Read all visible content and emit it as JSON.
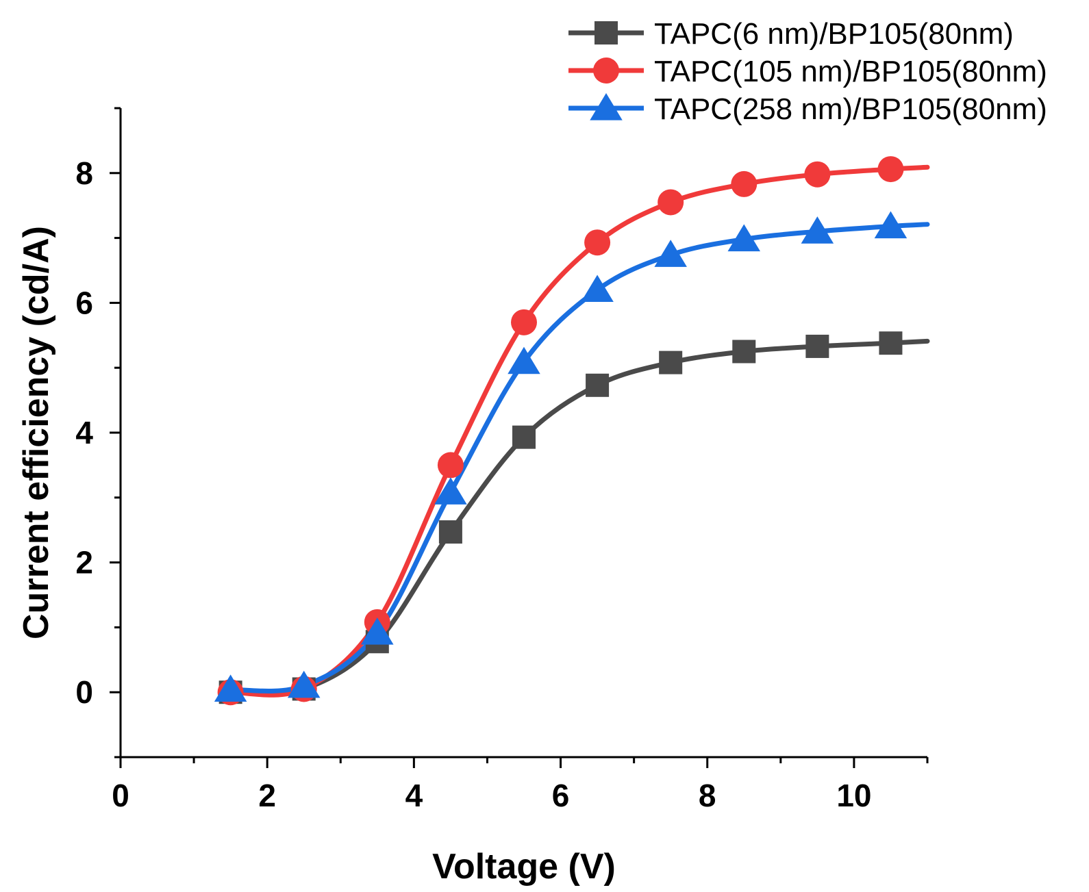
{
  "chart_data": {
    "type": "line",
    "title": "",
    "xlabel": "Voltage (V)",
    "ylabel": "Current efficiency (cd/A)",
    "xlim": [
      0,
      11
    ],
    "ylim": [
      -1,
      9
    ],
    "xticks": [
      0,
      2,
      4,
      6,
      8,
      10
    ],
    "yticks": [
      0,
      2,
      4,
      6,
      8
    ],
    "x_tick_labels": [
      "0",
      "2",
      "4",
      "6",
      "8",
      "10"
    ],
    "y_tick_labels": [
      "0",
      "2",
      "4",
      "6",
      "8"
    ],
    "grid": false,
    "legend_position": "top-right",
    "series": [
      {
        "name": "TAPC(6 nm)/BP105(80nm)",
        "color": "#4a4a4a",
        "marker": "square",
        "x": [
          1.5,
          2.5,
          3.5,
          4.5,
          5.5,
          6.5,
          7.5,
          8.5,
          9.5,
          10.5
        ],
        "values": [
          0.0,
          0.05,
          0.78,
          2.47,
          3.93,
          4.73,
          5.08,
          5.25,
          5.33,
          5.38
        ],
        "curve_end": 5.41
      },
      {
        "name": "TAPC(105 nm)/BP105(80nm)",
        "color": "#f03a3a",
        "marker": "circle",
        "x": [
          1.5,
          2.5,
          3.5,
          4.5,
          5.5,
          6.5,
          7.5,
          8.5,
          9.5,
          10.5
        ],
        "values": [
          0.0,
          0.05,
          1.08,
          3.5,
          5.7,
          6.93,
          7.55,
          7.83,
          7.98,
          8.06
        ],
        "curve_end": 8.09
      },
      {
        "name": "TAPC(258 nm)/BP105(80nm)",
        "color": "#1a6fe0",
        "marker": "triangle",
        "x": [
          1.5,
          2.5,
          3.5,
          4.5,
          5.5,
          6.5,
          7.5,
          8.5,
          9.5,
          10.5
        ],
        "values": [
          0.04,
          0.1,
          0.92,
          3.08,
          5.09,
          6.2,
          6.74,
          6.98,
          7.1,
          7.18
        ],
        "curve_end": 7.21
      }
    ]
  }
}
